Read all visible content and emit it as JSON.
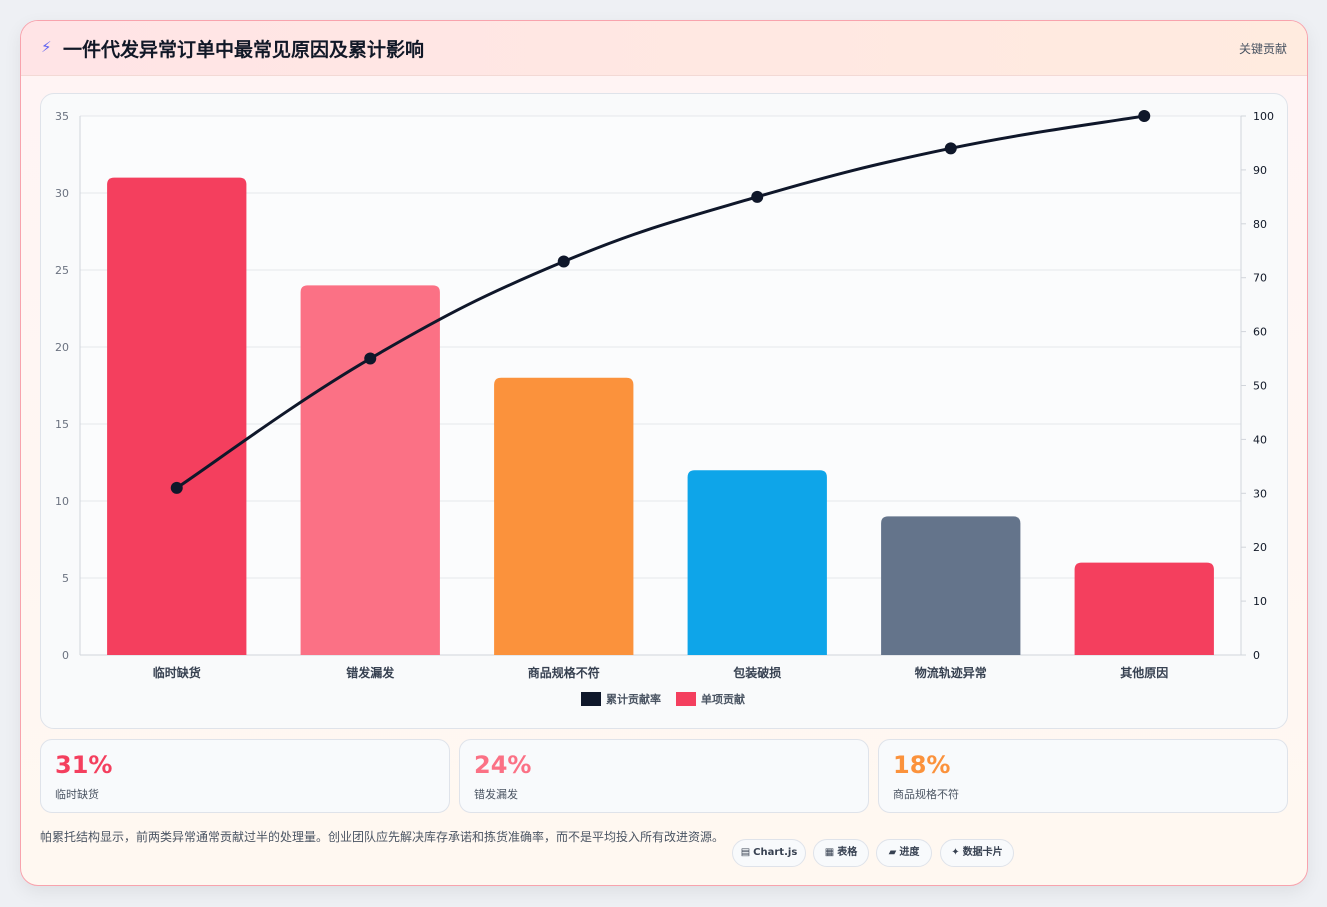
{
  "header": {
    "icon": "lightning-icon",
    "title": "一件代发异常订单中最常见原因及累计影响",
    "tag": "关键贡献"
  },
  "chart_data": {
    "type": "bar",
    "categories": [
      "临时缺货",
      "错发漏发",
      "商品规格不符",
      "包装破损",
      "物流轨迹异常",
      "其他原因"
    ],
    "series": [
      {
        "name": "单项贡献",
        "type": "bar",
        "axis": "left",
        "values": [
          31,
          24,
          18,
          12,
          9,
          6
        ],
        "colors": [
          "#f43f5e",
          "#fb7185",
          "#fb923c",
          "#0ea5e9",
          "#64748b",
          "#f43f5e"
        ]
      },
      {
        "name": "累计贡献率",
        "type": "line",
        "axis": "right",
        "values": [
          31,
          55,
          73,
          85,
          94,
          100
        ],
        "color": "#0f172a"
      }
    ],
    "yleft": {
      "min": 0,
      "max": 35,
      "ticks": [
        0,
        5,
        10,
        15,
        20,
        25,
        30,
        35
      ]
    },
    "yright": {
      "min": 0,
      "max": 100,
      "ticks": [
        0,
        10,
        20,
        30,
        40,
        50,
        60,
        70,
        80,
        90,
        100
      ]
    },
    "legend": {
      "position": "bottom",
      "items": [
        {
          "label": "累计贡献率",
          "color": "#0f172a"
        },
        {
          "label": "单项贡献",
          "color": "#f43f5e"
        }
      ]
    },
    "grid": true
  },
  "stats": [
    {
      "value": "31%",
      "label": "临时缺货",
      "color": "#f43f5e"
    },
    {
      "value": "24%",
      "label": "错发漏发",
      "color": "#fb7185"
    },
    {
      "value": "18%",
      "label": "商品规格不符",
      "color": "#fb923c"
    }
  ],
  "footer": {
    "note": "帕累托结构显示，前两类异常通常贡献过半的处理量。创业团队应先解决库存承诺和拣货准确率，而不是平均投入所有改进资源。",
    "pills": [
      {
        "icon": "chart-icon",
        "glyph": "▤",
        "label": "Chart.js"
      },
      {
        "icon": "table-icon",
        "glyph": "▦",
        "label": "表格"
      },
      {
        "icon": "progress-icon",
        "glyph": "▰",
        "label": "进度"
      },
      {
        "icon": "sparkle-icon",
        "glyph": "✦",
        "label": "数据卡片"
      }
    ]
  }
}
